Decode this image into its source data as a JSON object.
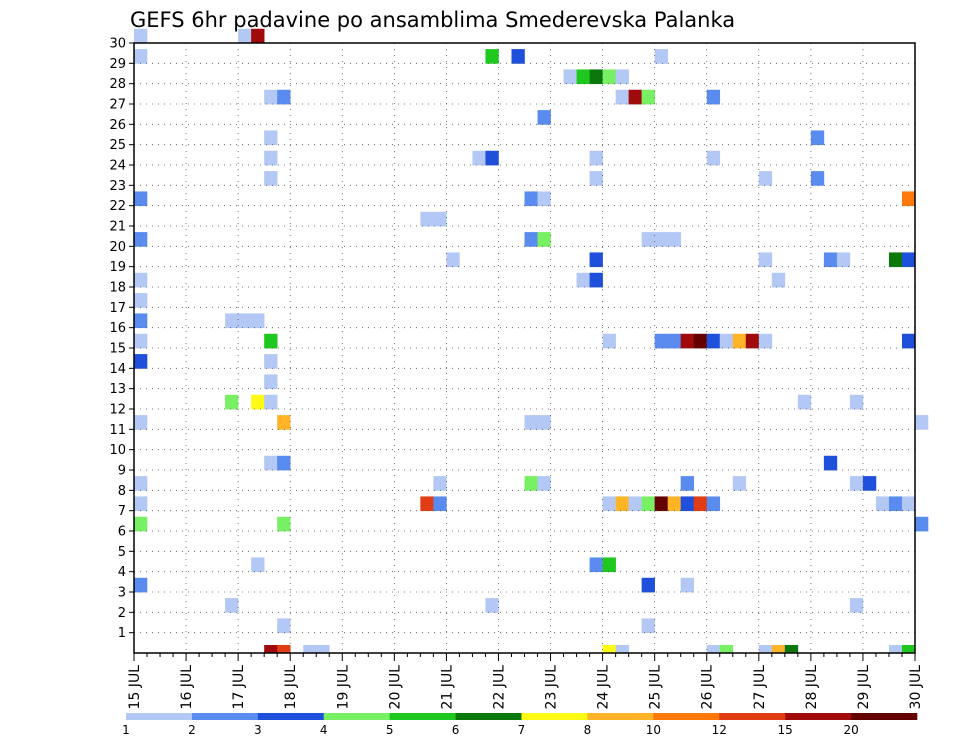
{
  "chart_data": {
    "type": "heatmap",
    "title": "GEFS 6hr padavine po ansamblima Smederevska Palanka",
    "y_ticks": [
      "1",
      "2",
      "3",
      "4",
      "5",
      "6",
      "7",
      "8",
      "9",
      "10",
      "11",
      "12",
      "13",
      "14",
      "15",
      "16",
      "17",
      "18",
      "19",
      "20",
      "21",
      "22",
      "23",
      "24",
      "25",
      "26",
      "27",
      "28",
      "29",
      "30"
    ],
    "x_ticks": [
      "15 JUL",
      "16 JUL",
      "17 JUL",
      "18 JUL",
      "19 JUL",
      "20 JUL",
      "21 JUL",
      "22 JUL",
      "23 JUL",
      "24 JUL",
      "25 JUL",
      "26 JUL",
      "27 JUL",
      "28 JUL",
      "29 JUL",
      "30 JUL"
    ],
    "x_range": [
      "15 JUL 00Z",
      "30 JUL 00Z"
    ],
    "time_step_hours": 6,
    "y_range": [
      0,
      30
    ],
    "grid": true,
    "legend": {
      "position": "bottom",
      "labels": [
        "1",
        "2",
        "3",
        "4",
        "5",
        "6",
        "7",
        "8",
        "10",
        "12",
        "15",
        "20"
      ],
      "colors": [
        "#b4c8f5",
        "#5a8cf0",
        "#1e50dc",
        "#78f064",
        "#1ec81e",
        "#0a780a",
        "#fffa14",
        "#ffb428",
        "#ff780a",
        "#e13c14",
        "#a00a0a",
        "#640000"
      ]
    },
    "cells": [
      {
        "member": 30,
        "t": 0,
        "cls": 0
      },
      {
        "member": 29,
        "t": 0,
        "cls": 0
      },
      {
        "member": 30,
        "t": 8,
        "cls": 0
      },
      {
        "member": 30,
        "t": 9,
        "cls": 10
      },
      {
        "member": 29,
        "t": 27,
        "cls": 4
      },
      {
        "member": 29,
        "t": 29,
        "cls": 2
      },
      {
        "member": 29,
        "t": 40,
        "cls": 0
      },
      {
        "member": 28,
        "t": 33,
        "cls": 0
      },
      {
        "member": 28,
        "t": 34,
        "cls": 4
      },
      {
        "member": 28,
        "t": 35,
        "cls": 5
      },
      {
        "member": 28,
        "t": 36,
        "cls": 3
      },
      {
        "member": 28,
        "t": 37,
        "cls": 0
      },
      {
        "member": 27,
        "t": 10,
        "cls": 0
      },
      {
        "member": 27,
        "t": 11,
        "cls": 1
      },
      {
        "member": 27,
        "t": 37,
        "cls": 0
      },
      {
        "member": 27,
        "t": 38,
        "cls": 10
      },
      {
        "member": 27,
        "t": 39,
        "cls": 3
      },
      {
        "member": 27,
        "t": 44,
        "cls": 1
      },
      {
        "member": 26,
        "t": 31,
        "cls": 1
      },
      {
        "member": 25,
        "t": 10,
        "cls": 0
      },
      {
        "member": 25,
        "t": 52,
        "cls": 1
      },
      {
        "member": 24,
        "t": 10,
        "cls": 0
      },
      {
        "member": 24,
        "t": 26,
        "cls": 0
      },
      {
        "member": 24,
        "t": 27,
        "cls": 2
      },
      {
        "member": 24,
        "t": 35,
        "cls": 0
      },
      {
        "member": 24,
        "t": 44,
        "cls": 0
      },
      {
        "member": 23,
        "t": 10,
        "cls": 0
      },
      {
        "member": 23,
        "t": 35,
        "cls": 0
      },
      {
        "member": 23,
        "t": 48,
        "cls": 0
      },
      {
        "member": 23,
        "t": 52,
        "cls": 1
      },
      {
        "member": 22,
        "t": 0,
        "cls": 1
      },
      {
        "member": 22,
        "t": 30,
        "cls": 1
      },
      {
        "member": 22,
        "t": 31,
        "cls": 0
      },
      {
        "member": 22,
        "t": 59,
        "cls": 8
      },
      {
        "member": 21,
        "t": 22,
        "cls": 0
      },
      {
        "member": 21,
        "t": 23,
        "cls": 0
      },
      {
        "member": 20,
        "t": 0,
        "cls": 1
      },
      {
        "member": 20,
        "t": 30,
        "cls": 1
      },
      {
        "member": 20,
        "t": 31,
        "cls": 3
      },
      {
        "member": 20,
        "t": 39,
        "cls": 0
      },
      {
        "member": 20,
        "t": 40,
        "cls": 0
      },
      {
        "member": 20,
        "t": 41,
        "cls": 0
      },
      {
        "member": 19,
        "t": 24,
        "cls": 0
      },
      {
        "member": 19,
        "t": 35,
        "cls": 2
      },
      {
        "member": 19,
        "t": 48,
        "cls": 0
      },
      {
        "member": 19,
        "t": 53,
        "cls": 1
      },
      {
        "member": 19,
        "t": 54,
        "cls": 0
      },
      {
        "member": 19,
        "t": 58,
        "cls": 5
      },
      {
        "member": 19,
        "t": 59,
        "cls": 2
      },
      {
        "member": 18,
        "t": 0,
        "cls": 0
      },
      {
        "member": 18,
        "t": 34,
        "cls": 0
      },
      {
        "member": 18,
        "t": 35,
        "cls": 2
      },
      {
        "member": 18,
        "t": 49,
        "cls": 0
      },
      {
        "member": 17,
        "t": 0,
        "cls": 0
      },
      {
        "member": 16,
        "t": 0,
        "cls": 1
      },
      {
        "member": 16,
        "t": 7,
        "cls": 0
      },
      {
        "member": 16,
        "t": 8,
        "cls": 0
      },
      {
        "member": 16,
        "t": 9,
        "cls": 0
      },
      {
        "member": 15,
        "t": 0,
        "cls": 0
      },
      {
        "member": 15,
        "t": 10,
        "cls": 4
      },
      {
        "member": 15,
        "t": 36,
        "cls": 0
      },
      {
        "member": 15,
        "t": 40,
        "cls": 1
      },
      {
        "member": 15,
        "t": 41,
        "cls": 1
      },
      {
        "member": 15,
        "t": 42,
        "cls": 10
      },
      {
        "member": 15,
        "t": 43,
        "cls": 11
      },
      {
        "member": 15,
        "t": 44,
        "cls": 2
      },
      {
        "member": 15,
        "t": 45,
        "cls": 0
      },
      {
        "member": 15,
        "t": 46,
        "cls": 7
      },
      {
        "member": 15,
        "t": 47,
        "cls": 10
      },
      {
        "member": 15,
        "t": 48,
        "cls": 0
      },
      {
        "member": 15,
        "t": 59,
        "cls": 2
      },
      {
        "member": 14,
        "t": 0,
        "cls": 2
      },
      {
        "member": 14,
        "t": 10,
        "cls": 0
      },
      {
        "member": 13,
        "t": 10,
        "cls": 0
      },
      {
        "member": 12,
        "t": 7,
        "cls": 3
      },
      {
        "member": 12,
        "t": 9,
        "cls": 6
      },
      {
        "member": 12,
        "t": 10,
        "cls": 0
      },
      {
        "member": 12,
        "t": 51,
        "cls": 0
      },
      {
        "member": 12,
        "t": 55,
        "cls": 0
      },
      {
        "member": 11,
        "t": 0,
        "cls": 0
      },
      {
        "member": 11,
        "t": 11,
        "cls": 7
      },
      {
        "member": 11,
        "t": 30,
        "cls": 0
      },
      {
        "member": 11,
        "t": 31,
        "cls": 0
      },
      {
        "member": 11,
        "t": 60,
        "cls": 0
      },
      {
        "member": 9,
        "t": 10,
        "cls": 0
      },
      {
        "member": 9,
        "t": 11,
        "cls": 1
      },
      {
        "member": 9,
        "t": 53,
        "cls": 2
      },
      {
        "member": 8,
        "t": 0,
        "cls": 0
      },
      {
        "member": 8,
        "t": 23,
        "cls": 0
      },
      {
        "member": 8,
        "t": 30,
        "cls": 3
      },
      {
        "member": 8,
        "t": 31,
        "cls": 0
      },
      {
        "member": 8,
        "t": 42,
        "cls": 1
      },
      {
        "member": 8,
        "t": 46,
        "cls": 0
      },
      {
        "member": 8,
        "t": 55,
        "cls": 0
      },
      {
        "member": 8,
        "t": 56,
        "cls": 2
      },
      {
        "member": 7,
        "t": 0,
        "cls": 0
      },
      {
        "member": 7,
        "t": 22,
        "cls": 9
      },
      {
        "member": 7,
        "t": 23,
        "cls": 1
      },
      {
        "member": 7,
        "t": 36,
        "cls": 0
      },
      {
        "member": 7,
        "t": 37,
        "cls": 7
      },
      {
        "member": 7,
        "t": 38,
        "cls": 0
      },
      {
        "member": 7,
        "t": 39,
        "cls": 3
      },
      {
        "member": 7,
        "t": 40,
        "cls": 11
      },
      {
        "member": 7,
        "t": 41,
        "cls": 7
      },
      {
        "member": 7,
        "t": 42,
        "cls": 2
      },
      {
        "member": 7,
        "t": 43,
        "cls": 9
      },
      {
        "member": 7,
        "t": 44,
        "cls": 1
      },
      {
        "member": 7,
        "t": 57,
        "cls": 0
      },
      {
        "member": 7,
        "t": 58,
        "cls": 1
      },
      {
        "member": 7,
        "t": 59,
        "cls": 0
      },
      {
        "member": 6,
        "t": 0,
        "cls": 3
      },
      {
        "member": 6,
        "t": 11,
        "cls": 3
      },
      {
        "member": 6,
        "t": 60,
        "cls": 1
      },
      {
        "member": 4,
        "t": 9,
        "cls": 0
      },
      {
        "member": 4,
        "t": 35,
        "cls": 1
      },
      {
        "member": 4,
        "t": 36,
        "cls": 4
      },
      {
        "member": 3,
        "t": 0,
        "cls": 1
      },
      {
        "member": 3,
        "t": 39,
        "cls": 2
      },
      {
        "member": 3,
        "t": 42,
        "cls": 0
      },
      {
        "member": 2,
        "t": 7,
        "cls": 0
      },
      {
        "member": 2,
        "t": 27,
        "cls": 0
      },
      {
        "member": 2,
        "t": 55,
        "cls": 0
      },
      {
        "member": 1,
        "t": 11,
        "cls": 0
      },
      {
        "member": 1,
        "t": 39,
        "cls": 0
      },
      {
        "member": 0,
        "t": 10,
        "cls": 10
      },
      {
        "member": 0,
        "t": 11,
        "cls": 9
      },
      {
        "member": 0,
        "t": 13,
        "cls": 0
      },
      {
        "member": 0,
        "t": 14,
        "cls": 0
      },
      {
        "member": 0,
        "t": 36,
        "cls": 6
      },
      {
        "member": 0,
        "t": 37,
        "cls": 0
      },
      {
        "member": 0,
        "t": 44,
        "cls": 0
      },
      {
        "member": 0,
        "t": 45,
        "cls": 3
      },
      {
        "member": 0,
        "t": 48,
        "cls": 0
      },
      {
        "member": 0,
        "t": 49,
        "cls": 7
      },
      {
        "member": 0,
        "t": 50,
        "cls": 5
      },
      {
        "member": 0,
        "t": 58,
        "cls": 0
      },
      {
        "member": 0,
        "t": 59,
        "cls": 4
      }
    ]
  }
}
